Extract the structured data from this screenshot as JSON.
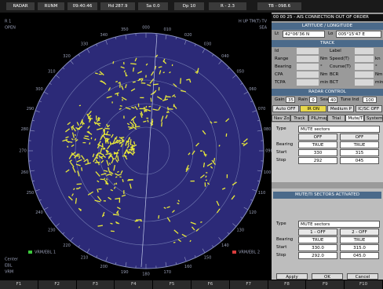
{
  "top_bar": [
    "RADAR",
    "RUNM",
    "09:40:46",
    "Hd 287.9",
    "Sa 0.0",
    "Dp 10",
    "R - 2.3",
    "TB - 098.6"
  ],
  "radar": {
    "range_label": "R 1",
    "mode_left": "OPEN",
    "mode_right": "H UP TM(T) TV",
    "sea_label": "SEA",
    "bearing_labels": [
      "000",
      "010",
      "020",
      "030",
      "040",
      "050",
      "060",
      "070",
      "080",
      "090",
      "100",
      "110",
      "120",
      "130",
      "140",
      "150",
      "160",
      "170",
      "180",
      "190",
      "200",
      "210",
      "220",
      "230",
      "240",
      "250",
      "260",
      "270",
      "280",
      "290",
      "300",
      "310",
      "320",
      "330",
      "340",
      "350"
    ],
    "vrm_ebl_1": "VRM/EBL 1",
    "vrm_ebl_2": "VRM/EBL 2",
    "info_labels": [
      "Center",
      "EBL",
      "VRM"
    ]
  },
  "function_keys": [
    "F1",
    "F2",
    "F3",
    "F4",
    "F5",
    "F6",
    "F7",
    "F8",
    "F9",
    "F10"
  ],
  "alarm": "00 00 25 - AIS CONNECTION OUT OF ORDER",
  "position": {
    "title": "LATITUDE / LONGITUDE",
    "lat_label": "Lt",
    "lat": "42°06'36 N",
    "lon_label": "Lo",
    "lon": "005°15'47 E"
  },
  "track": {
    "title": "TRACK",
    "rows": [
      {
        "left": "Id",
        "right": "Label"
      },
      {
        "left": "Range",
        "left_unit": "Nm",
        "right": "Speed(T)",
        "right_unit": "kn"
      },
      {
        "left": "Bearing",
        "left_unit": "°",
        "right": "Course(T)",
        "right_unit": "°"
      },
      {
        "left": "CPA",
        "left_unit": "Nm",
        "right": "BCR",
        "right_unit": "Nm"
      },
      {
        "left": "TCPA",
        "left_unit": "min",
        "right": "BCT",
        "right_unit": "min"
      }
    ]
  },
  "radar_control": {
    "title": "RADAR CONTROL",
    "controls": [
      {
        "label": "Gain",
        "value": "35"
      },
      {
        "label": "Rain",
        "value": "0"
      },
      {
        "label": "Sea",
        "value": "40"
      },
      {
        "label": "Tune Ind",
        "value": "100"
      }
    ],
    "buttons": [
      "Auto OFF",
      "IR ON",
      "Medium P",
      "IC/SC OFF"
    ]
  },
  "tabs": [
    "Nav Zones",
    "Track",
    "PIL/map",
    "Trial",
    "Mute/TI",
    "System"
  ],
  "mute_panel": {
    "type_label": "Type",
    "type": "MUTE sectors",
    "status": [
      "OFF",
      "OFF"
    ],
    "rows": [
      {
        "label": "Bearing",
        "values": [
          "TRUE",
          "TRUE"
        ]
      },
      {
        "label": "Start",
        "values": [
          "330",
          "315"
        ]
      },
      {
        "label": "Stop",
        "values": [
          "292",
          "045"
        ]
      }
    ]
  },
  "dialog": {
    "title": "MUTE/TI SECTORS ACTIVATED",
    "type_label": "Type",
    "type": "MUTE sectors",
    "status": [
      "1 - OFF",
      "2 - OFF"
    ],
    "rows": [
      {
        "label": "Bearing",
        "values": [
          "TRUE",
          "TRUE"
        ]
      },
      {
        "label": "Start",
        "values": [
          "330.0",
          "315.0"
        ]
      },
      {
        "label": "Stop",
        "values": [
          "292.0",
          "045.0"
        ]
      }
    ],
    "buttons": [
      "Apply",
      "OK",
      "Cancel"
    ]
  }
}
